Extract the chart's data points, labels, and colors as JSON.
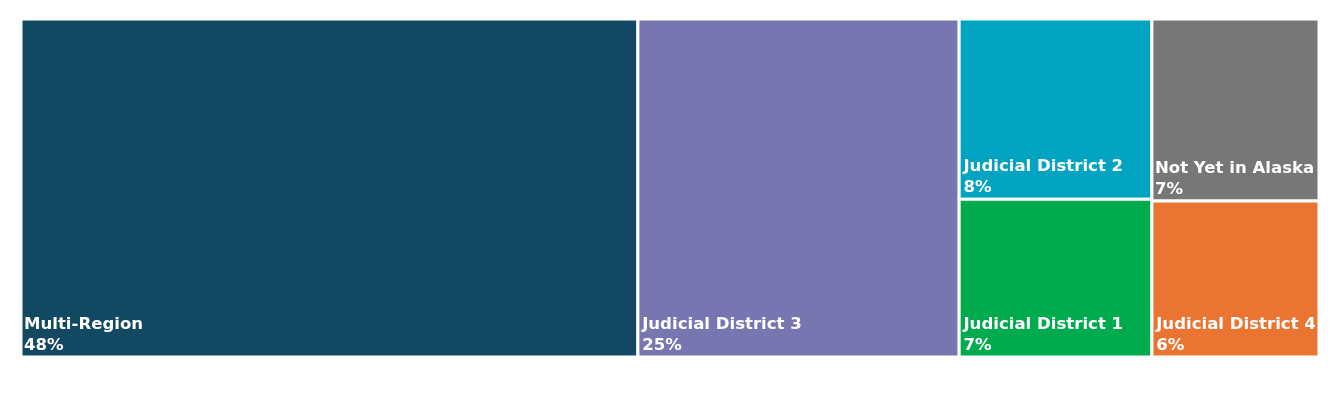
{
  "chart_data": {
    "type": "other",
    "categories": [
      "Multi-Region",
      "Judicial District 3",
      "Judicial District 2",
      "Judicial District 1",
      "Not Yet in Alaska",
      "Judicial District 4"
    ],
    "values": [
      48,
      25,
      8,
      7,
      7,
      6
    ],
    "value_labels": [
      "48%",
      "25%",
      "8%",
      "7%",
      "7%",
      "6%"
    ],
    "colors": [
      "#134863",
      "#7876b0",
      "#00a4c0",
      "#00ab4e",
      "#777777",
      "#ea7533"
    ]
  }
}
